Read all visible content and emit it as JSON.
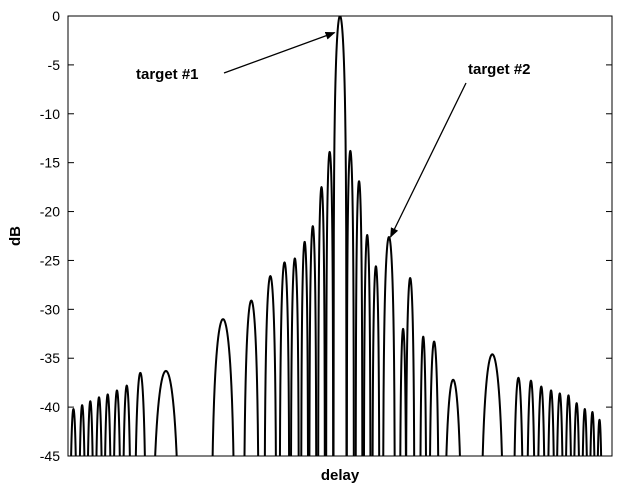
{
  "chart_data": {
    "type": "line",
    "title": "",
    "xlabel": "delay",
    "ylabel": "dB",
    "ylim": [
      -45,
      0
    ],
    "yticks": [
      0,
      -5,
      -10,
      -15,
      -20,
      -25,
      -30,
      -35,
      -40,
      -45
    ],
    "x_tick_labels": [],
    "grid": false,
    "legend": "none",
    "x_domain": [
      0,
      1
    ],
    "series": [
      {
        "color": "#000000",
        "lobes": [
          {
            "x": 0.01,
            "peak": -40.2,
            "hw": 0.007
          },
          {
            "x": 0.026,
            "peak": -39.8,
            "hw": 0.0065
          },
          {
            "x": 0.041,
            "peak": -39.4,
            "hw": 0.0065
          },
          {
            "x": 0.057,
            "peak": -39.0,
            "hw": 0.007
          },
          {
            "x": 0.073,
            "peak": -38.7,
            "hw": 0.007
          },
          {
            "x": 0.09,
            "peak": -38.3,
            "hw": 0.0075
          },
          {
            "x": 0.108,
            "peak": -37.8,
            "hw": 0.008
          },
          {
            "x": 0.133,
            "peak": -36.5,
            "hw": 0.011
          },
          {
            "x": 0.18,
            "peak": -36.3,
            "hw": 0.026
          },
          {
            "x": 0.285,
            "peak": -31.0,
            "hw": 0.022
          },
          {
            "x": 0.337,
            "peak": -29.1,
            "hw": 0.014
          },
          {
            "x": 0.372,
            "peak": -26.6,
            "hw": 0.011
          },
          {
            "x": 0.398,
            "peak": -25.2,
            "hw": 0.009
          },
          {
            "x": 0.417,
            "peak": -24.8,
            "hw": 0.0075
          },
          {
            "x": 0.435,
            "peak": -23.1,
            "hw": 0.0065
          },
          {
            "x": 0.45,
            "peak": -21.5,
            "hw": 0.0065
          },
          {
            "x": 0.466,
            "peak": -17.5,
            "hw": 0.0062
          },
          {
            "x": 0.481,
            "peak": -13.9,
            "hw": 0.0065
          },
          {
            "x": 0.5,
            "peak": 0.0,
            "hw": 0.012
          },
          {
            "x": 0.519,
            "peak": -13.8,
            "hw": 0.0065
          },
          {
            "x": 0.535,
            "peak": -16.9,
            "hw": 0.0062
          },
          {
            "x": 0.55,
            "peak": -22.4,
            "hw": 0.0062
          },
          {
            "x": 0.566,
            "peak": -25.6,
            "hw": 0.0065
          },
          {
            "x": 0.59,
            "peak": -22.6,
            "hw": 0.011
          },
          {
            "x": 0.616,
            "peak": -32.0,
            "hw": 0.006
          },
          {
            "x": 0.629,
            "peak": -26.8,
            "hw": 0.008
          },
          {
            "x": 0.653,
            "peak": -32.8,
            "hw": 0.006
          },
          {
            "x": 0.673,
            "peak": -33.3,
            "hw": 0.009
          },
          {
            "x": 0.708,
            "peak": -37.2,
            "hw": 0.017
          },
          {
            "x": 0.78,
            "peak": -34.6,
            "hw": 0.022
          },
          {
            "x": 0.828,
            "peak": -37.0,
            "hw": 0.0095
          },
          {
            "x": 0.851,
            "peak": -37.3,
            "hw": 0.008
          },
          {
            "x": 0.87,
            "peak": -37.9,
            "hw": 0.0075
          },
          {
            "x": 0.888,
            "peak": -38.3,
            "hw": 0.007
          },
          {
            "x": 0.904,
            "peak": -38.6,
            "hw": 0.007
          },
          {
            "x": 0.92,
            "peak": -38.8,
            "hw": 0.0065
          },
          {
            "x": 0.935,
            "peak": -39.6,
            "hw": 0.0065
          },
          {
            "x": 0.95,
            "peak": -40.2,
            "hw": 0.006
          },
          {
            "x": 0.964,
            "peak": -40.5,
            "hw": 0.006
          },
          {
            "x": 0.977,
            "peak": -41.3,
            "hw": 0.0055
          }
        ]
      }
    ],
    "annotations": [
      {
        "text": "target #1",
        "points_to": {
          "x": 0.49,
          "y": -1.7
        }
      },
      {
        "text": "target #2",
        "points_to": {
          "x": 0.593,
          "y": -22.6
        }
      }
    ]
  }
}
